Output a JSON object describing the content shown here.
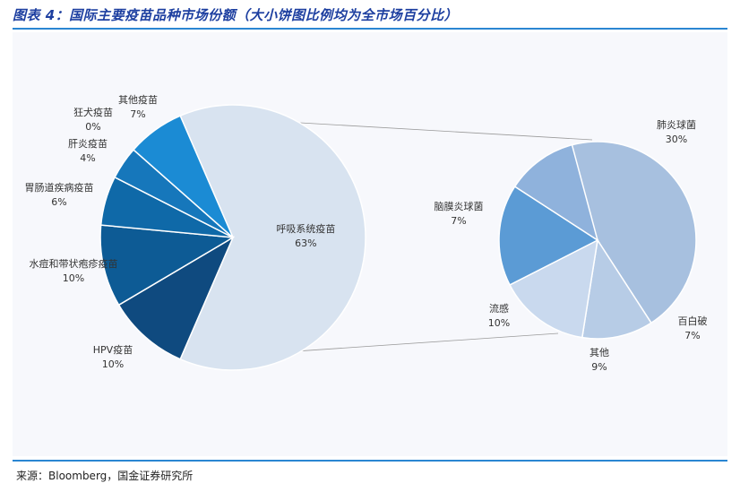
{
  "title": "图表 4：国际主要疫苗品种市场份额（大小饼图比例均为全市场百分比）",
  "source": "来源：Bloomberg，国金证券研究所",
  "chart_data": [
    {
      "type": "pie",
      "slices": [
        {
          "label": "呼吸系统疫苗",
          "value": 63,
          "value_label": "63%",
          "color": "#d8e3f0"
        },
        {
          "label": "HPV疫苗",
          "value": 10,
          "value_label": "10%",
          "color": "#0f4a7f"
        },
        {
          "label": "水痘和带状疱疹疫苗",
          "value": 10,
          "value_label": "10%",
          "color": "#0d5b95"
        },
        {
          "label": "胃肠道疾病疫苗",
          "value": 6,
          "value_label": "6%",
          "color": "#0f69a8"
        },
        {
          "label": "肝炎疫苗",
          "value": 4,
          "value_label": "4%",
          "color": "#1677bb"
        },
        {
          "label": "狂犬疫苗",
          "value": 0,
          "value_label": "0%",
          "color": "#1a82c8"
        },
        {
          "label": "其他疫苗",
          "value": 7,
          "value_label": "7%",
          "color": "#1b8bd4"
        }
      ]
    },
    {
      "type": "pie",
      "slices": [
        {
          "label": "肺炎球菌",
          "value": 30,
          "value_label": "30%",
          "color": "#a7c0df"
        },
        {
          "label": "百白破",
          "value": 7,
          "value_label": "7%",
          "color": "#b7cce6"
        },
        {
          "label": "其他",
          "value": 9,
          "value_label": "9%",
          "color": "#c9d9ee"
        },
        {
          "label": "流感",
          "value": 10,
          "value_label": "10%",
          "color": "#5b9bd5"
        },
        {
          "label": "脑膜炎球菌",
          "value": 7,
          "value_label": "7%",
          "color": "#8fb2dc"
        }
      ]
    }
  ]
}
